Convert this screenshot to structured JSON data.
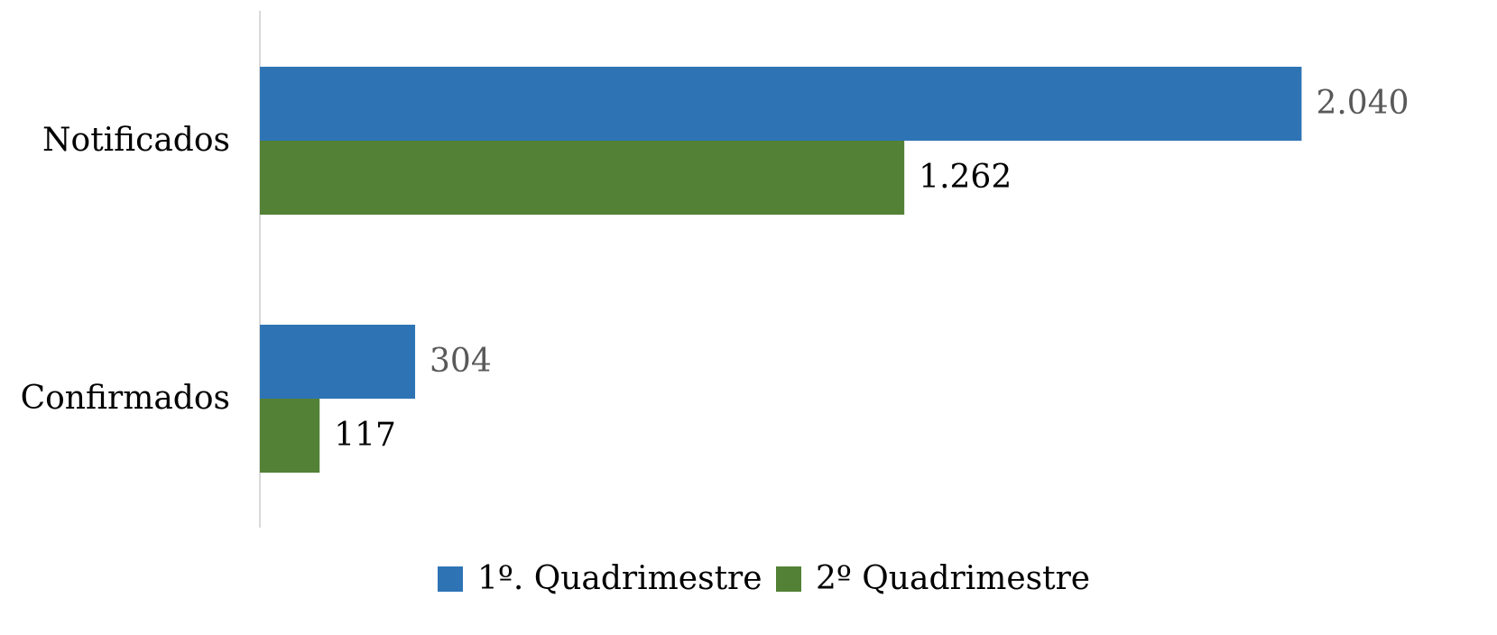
{
  "chart_data": {
    "type": "hbar",
    "categories": [
      "Notificados",
      "Confirmados"
    ],
    "series": [
      {
        "name": "1º. Quadrimestre",
        "color": "#2e74b5",
        "values": [
          2040,
          304
        ],
        "value_labels": [
          "2.040",
          "304"
        ]
      },
      {
        "name": "2º Quadrimestre",
        "color": "#538135",
        "values": [
          1262,
          117
        ],
        "value_labels": [
          "1.262",
          "117"
        ]
      }
    ],
    "xlim": [
      0,
      2200
    ],
    "legend": "bottom"
  }
}
